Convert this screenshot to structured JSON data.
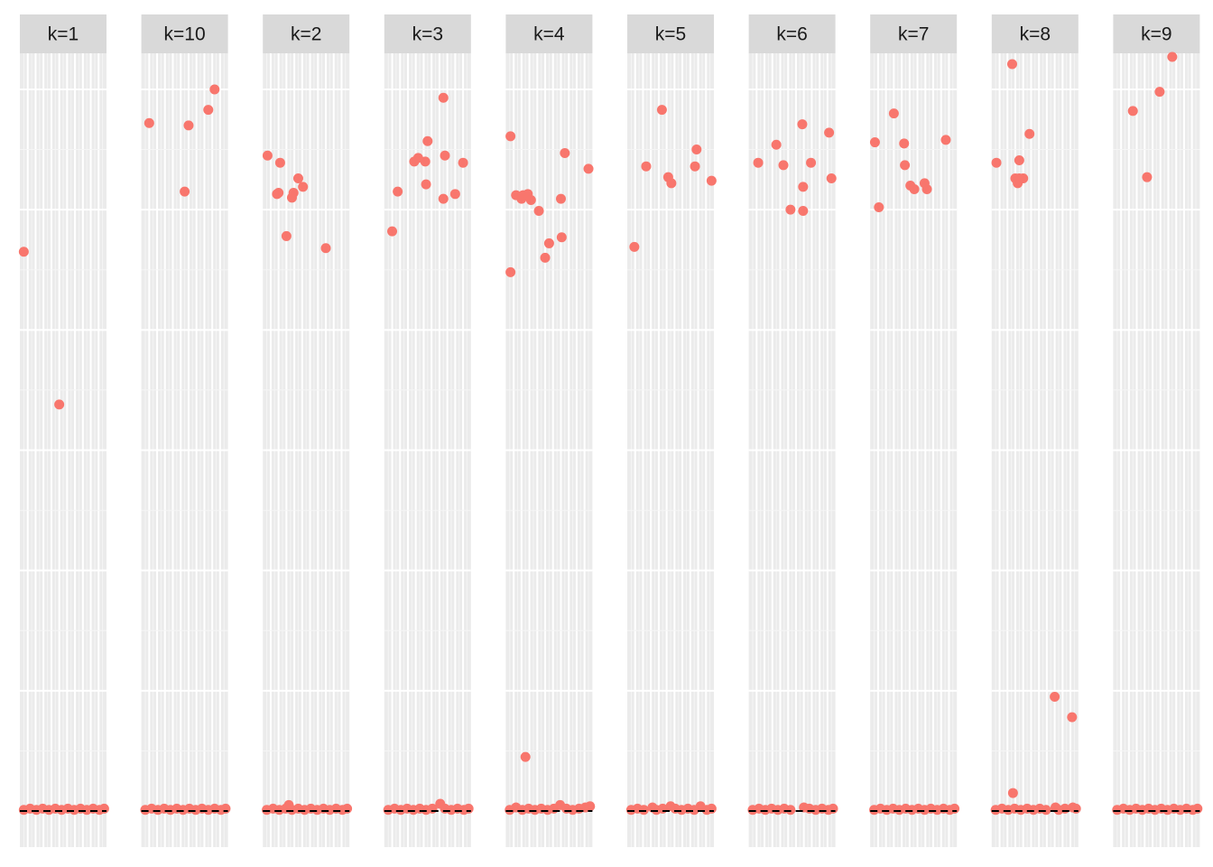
{
  "chart_data": {
    "type": "scatter",
    "layout": "faceted",
    "title": "",
    "xlabel": "",
    "ylabel": "",
    "x_range": [
      0,
      11
    ],
    "y_range": [
      -0.3,
      6.3
    ],
    "colors": {
      "point": "#F8766D",
      "panel": "#EBEBEB",
      "grid_major": "#FFFFFF",
      "grid_minor": "#F5F5F5",
      "strip": "#D9D9D9",
      "reference_line": "#000000"
    },
    "reference_line": {
      "y": 0,
      "style": "dashed"
    },
    "facets": [
      {
        "label": "k=1",
        "points": [
          [
            0.5,
            4.65
          ],
          [
            5.0,
            3.38
          ]
        ],
        "baseline": [
          [
            0.5,
            0.01
          ],
          [
            1.3,
            0.02
          ],
          [
            2.1,
            0.01
          ],
          [
            2.9,
            0.02
          ],
          [
            3.7,
            0.01
          ],
          [
            4.5,
            0.02
          ],
          [
            5.3,
            0.01
          ],
          [
            6.1,
            0.02
          ],
          [
            6.9,
            0.01
          ],
          [
            7.7,
            0.02
          ],
          [
            8.5,
            0.01
          ],
          [
            9.3,
            0.02
          ],
          [
            10.1,
            0.01
          ],
          [
            10.7,
            0.02
          ]
        ]
      },
      {
        "label": "k=10",
        "points": [
          [
            1.0,
            5.72
          ],
          [
            5.5,
            5.15
          ],
          [
            6.0,
            5.7
          ],
          [
            8.5,
            5.83
          ],
          [
            9.3,
            6.0
          ]
        ],
        "baseline": [
          [
            0.5,
            0.01
          ],
          [
            1.3,
            0.02
          ],
          [
            2.1,
            0.01
          ],
          [
            2.9,
            0.02
          ],
          [
            3.7,
            0.01
          ],
          [
            4.5,
            0.02
          ],
          [
            5.3,
            0.01
          ],
          [
            6.1,
            0.02
          ],
          [
            6.9,
            0.01
          ],
          [
            7.7,
            0.02
          ],
          [
            8.5,
            0.01
          ],
          [
            9.3,
            0.02
          ],
          [
            10.1,
            0.01
          ],
          [
            10.7,
            0.02
          ]
        ]
      },
      {
        "label": "k=2",
        "points": [
          [
            0.6,
            5.45
          ],
          [
            1.8,
            5.13
          ],
          [
            2.0,
            5.14
          ],
          [
            2.2,
            5.39
          ],
          [
            3.0,
            4.78
          ],
          [
            3.7,
            5.1
          ],
          [
            3.9,
            5.14
          ],
          [
            4.5,
            5.26
          ],
          [
            5.1,
            5.19
          ],
          [
            8.0,
            4.68
          ]
        ],
        "baseline": [
          [
            0.5,
            0.01
          ],
          [
            1.3,
            0.02
          ],
          [
            2.1,
            0.01
          ],
          [
            2.9,
            0.02
          ],
          [
            3.3,
            0.05
          ],
          [
            3.7,
            0.01
          ],
          [
            4.5,
            0.02
          ],
          [
            5.3,
            0.01
          ],
          [
            6.1,
            0.02
          ],
          [
            6.9,
            0.01
          ],
          [
            7.7,
            0.02
          ],
          [
            8.5,
            0.01
          ],
          [
            9.3,
            0.02
          ],
          [
            10.1,
            0.01
          ],
          [
            10.7,
            0.02
          ]
        ]
      },
      {
        "label": "k=3",
        "points": [
          [
            1.0,
            4.82
          ],
          [
            1.7,
            5.15
          ],
          [
            3.8,
            5.4
          ],
          [
            4.3,
            5.43
          ],
          [
            5.2,
            5.4
          ],
          [
            5.5,
            5.57
          ],
          [
            5.3,
            5.21
          ],
          [
            7.5,
            5.09
          ],
          [
            7.7,
            5.45
          ],
          [
            7.5,
            5.93
          ],
          [
            9.0,
            5.13
          ],
          [
            10.0,
            5.39
          ]
        ],
        "baseline": [
          [
            0.5,
            0.01
          ],
          [
            1.3,
            0.02
          ],
          [
            2.1,
            0.01
          ],
          [
            2.9,
            0.02
          ],
          [
            3.7,
            0.01
          ],
          [
            4.5,
            0.02
          ],
          [
            5.3,
            0.01
          ],
          [
            6.1,
            0.02
          ],
          [
            7.1,
            0.06
          ],
          [
            7.7,
            0.02
          ],
          [
            8.5,
            0.01
          ],
          [
            9.3,
            0.02
          ],
          [
            10.1,
            0.01
          ],
          [
            10.7,
            0.02
          ]
        ]
      },
      {
        "label": "k=4",
        "points": [
          [
            0.6,
            5.61
          ],
          [
            0.6,
            4.48
          ],
          [
            1.3,
            5.12
          ],
          [
            2.0,
            5.09
          ],
          [
            2.2,
            5.12
          ],
          [
            2.8,
            5.13
          ],
          [
            3.2,
            5.08
          ],
          [
            4.2,
            4.99
          ],
          [
            5.0,
            4.6
          ],
          [
            5.5,
            4.72
          ],
          [
            7.5,
            5.47
          ],
          [
            7.0,
            5.09
          ],
          [
            7.1,
            4.77
          ],
          [
            10.5,
            5.34
          ],
          [
            2.5,
            0.45
          ]
        ],
        "baseline": [
          [
            0.5,
            0.01
          ],
          [
            1.3,
            0.03
          ],
          [
            2.1,
            0.01
          ],
          [
            2.9,
            0.02
          ],
          [
            3.7,
            0.01
          ],
          [
            4.5,
            0.02
          ],
          [
            5.3,
            0.01
          ],
          [
            6.1,
            0.02
          ],
          [
            6.9,
            0.05
          ],
          [
            7.7,
            0.02
          ],
          [
            8.5,
            0.01
          ],
          [
            9.3,
            0.02
          ],
          [
            10.1,
            0.03
          ],
          [
            10.7,
            0.04
          ]
        ]
      },
      {
        "label": "k=5",
        "points": [
          [
            0.9,
            4.69
          ],
          [
            2.4,
            5.36
          ],
          [
            4.4,
            5.83
          ],
          [
            5.2,
            5.27
          ],
          [
            5.6,
            5.22
          ],
          [
            8.6,
            5.36
          ],
          [
            8.8,
            5.5
          ],
          [
            10.7,
            5.24
          ]
        ],
        "baseline": [
          [
            0.5,
            0.01
          ],
          [
            1.3,
            0.02
          ],
          [
            2.1,
            0.01
          ],
          [
            3.2,
            0.03
          ],
          [
            3.7,
            0.01
          ],
          [
            4.5,
            0.02
          ],
          [
            5.5,
            0.04
          ],
          [
            6.1,
            0.02
          ],
          [
            6.9,
            0.01
          ],
          [
            7.7,
            0.02
          ],
          [
            8.5,
            0.01
          ],
          [
            9.3,
            0.04
          ],
          [
            10.1,
            0.01
          ],
          [
            10.7,
            0.02
          ]
        ]
      },
      {
        "label": "k=6",
        "points": [
          [
            1.2,
            5.39
          ],
          [
            3.5,
            5.54
          ],
          [
            4.4,
            5.37
          ],
          [
            5.3,
            5.0
          ],
          [
            6.8,
            5.71
          ],
          [
            6.9,
            4.99
          ],
          [
            6.9,
            5.19
          ],
          [
            7.9,
            5.39
          ],
          [
            10.2,
            5.64
          ],
          [
            10.5,
            5.26
          ]
        ],
        "baseline": [
          [
            0.5,
            0.01
          ],
          [
            1.3,
            0.02
          ],
          [
            2.1,
            0.01
          ],
          [
            2.9,
            0.02
          ],
          [
            3.7,
            0.01
          ],
          [
            4.5,
            0.02
          ],
          [
            5.3,
            0.01
          ],
          [
            7.0,
            0.03
          ],
          [
            7.7,
            0.02
          ],
          [
            8.5,
            0.01
          ],
          [
            9.3,
            0.02
          ],
          [
            10.1,
            0.01
          ],
          [
            10.7,
            0.02
          ]
        ]
      },
      {
        "label": "k=7",
        "points": [
          [
            0.6,
            5.56
          ],
          [
            1.1,
            5.02
          ],
          [
            3.0,
            5.8
          ],
          [
            4.3,
            5.55
          ],
          [
            4.4,
            5.37
          ],
          [
            5.1,
            5.2
          ],
          [
            5.6,
            5.17
          ],
          [
            6.9,
            5.22
          ],
          [
            7.2,
            5.17
          ],
          [
            9.6,
            5.58
          ]
        ],
        "baseline": [
          [
            0.5,
            0.01
          ],
          [
            1.3,
            0.02
          ],
          [
            2.1,
            0.01
          ],
          [
            2.9,
            0.02
          ],
          [
            3.7,
            0.01
          ],
          [
            4.5,
            0.02
          ],
          [
            5.3,
            0.01
          ],
          [
            6.1,
            0.02
          ],
          [
            6.9,
            0.01
          ],
          [
            7.7,
            0.02
          ],
          [
            8.5,
            0.01
          ],
          [
            9.3,
            0.02
          ],
          [
            10.1,
            0.01
          ],
          [
            10.7,
            0.02
          ]
        ]
      },
      {
        "label": "k=8",
        "points": [
          [
            0.6,
            5.39
          ],
          [
            2.6,
            6.21
          ],
          [
            3.0,
            5.26
          ],
          [
            3.3,
            5.22
          ],
          [
            3.5,
            5.41
          ],
          [
            3.5,
            5.26
          ],
          [
            4.0,
            5.26
          ],
          [
            4.8,
            5.63
          ],
          [
            8.0,
            0.95
          ],
          [
            10.2,
            0.78
          ],
          [
            2.7,
            0.15
          ]
        ],
        "baseline": [
          [
            0.5,
            0.01
          ],
          [
            1.3,
            0.02
          ],
          [
            2.1,
            0.01
          ],
          [
            2.9,
            0.02
          ],
          [
            3.7,
            0.01
          ],
          [
            4.5,
            0.02
          ],
          [
            5.3,
            0.01
          ],
          [
            6.1,
            0.02
          ],
          [
            6.9,
            0.01
          ],
          [
            8.1,
            0.03
          ],
          [
            8.5,
            0.01
          ],
          [
            9.3,
            0.02
          ],
          [
            10.3,
            0.03
          ],
          [
            10.7,
            0.02
          ]
        ]
      },
      {
        "label": "k=9",
        "points": [
          [
            2.5,
            5.82
          ],
          [
            4.3,
            5.27
          ],
          [
            5.9,
            5.98
          ],
          [
            7.5,
            6.27
          ]
        ],
        "baseline": [
          [
            0.5,
            0.01
          ],
          [
            1.3,
            0.02
          ],
          [
            2.1,
            0.01
          ],
          [
            2.9,
            0.02
          ],
          [
            3.7,
            0.01
          ],
          [
            4.5,
            0.02
          ],
          [
            5.3,
            0.01
          ],
          [
            6.1,
            0.02
          ],
          [
            6.9,
            0.01
          ],
          [
            7.7,
            0.02
          ],
          [
            8.5,
            0.01
          ],
          [
            9.3,
            0.02
          ],
          [
            10.1,
            0.01
          ],
          [
            10.7,
            0.02
          ]
        ]
      }
    ]
  }
}
